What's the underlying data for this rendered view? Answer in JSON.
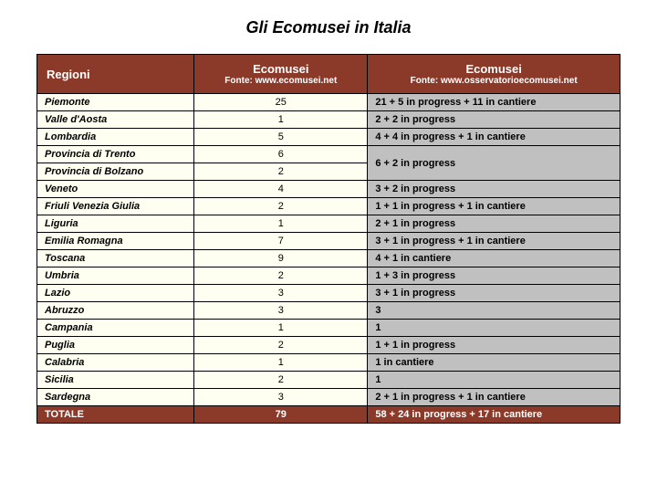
{
  "title": "Gli Ecomusei in Italia",
  "table": {
    "headers": {
      "regioni": "Regioni",
      "col2_main": "Ecomusei",
      "col2_sub": "Fonte: www.ecomusei.net",
      "col3_main": "Ecomusei",
      "col3_sub": "Fonte: www.osservatorioecomusei.net"
    },
    "rows": [
      {
        "region": "Piemonte",
        "count": "25",
        "detail": "21 + 5 in progress + 11 in cantiere"
      },
      {
        "region": "Valle d'Aosta",
        "count": "1",
        "detail": "2 + 2 in progress"
      },
      {
        "region": "Lombardia",
        "count": "5",
        "detail": "4 + 4 in progress + 1 in cantiere"
      },
      {
        "region": "Provincia di Trento",
        "count": "6",
        "detail": "6 + 2 in progress",
        "merge_below": true
      },
      {
        "region": "Provincia di Bolzano",
        "count": "2",
        "detail": null
      },
      {
        "region": "Veneto",
        "count": "4",
        "detail": "3 + 2 in progress"
      },
      {
        "region": "Friuli Venezia Giulia",
        "count": "2",
        "detail": "1 + 1 in progress + 1 in cantiere"
      },
      {
        "region": "Liguria",
        "count": "1",
        "detail": "2 + 1 in progress"
      },
      {
        "region": "Emilia Romagna",
        "count": "7",
        "detail": "3 + 1 in progress + 1 in cantiere"
      },
      {
        "region": "Toscana",
        "count": "9",
        "detail": "4 + 1 in cantiere"
      },
      {
        "region": "Umbria",
        "count": "2",
        "detail": "1 + 3 in progress"
      },
      {
        "region": "Lazio",
        "count": "3",
        "detail": "3 + 1 in progress"
      },
      {
        "region": "Abruzzo",
        "count": "3",
        "detail": "3"
      },
      {
        "region": "Campania",
        "count": "1",
        "detail": "1"
      },
      {
        "region": "Puglia",
        "count": "2",
        "detail": "1 + 1 in progress"
      },
      {
        "region": "Calabria",
        "count": "1",
        "detail": "1 in cantiere"
      },
      {
        "region": "Sicilia",
        "count": "2",
        "detail": "1"
      },
      {
        "region": "Sardegna",
        "count": "3",
        "detail": "2 + 1 in progress + 1 in  cantiere"
      }
    ],
    "total": {
      "label": "TOTALE",
      "count": "79",
      "detail": "58 +  24 in progress + 17 in cantiere"
    }
  },
  "colors": {
    "header_bg": "#8b3a2a",
    "header_fg": "#ffffff",
    "col_light_bg": "#fefff0",
    "col_detail_bg": "#c0c0c0",
    "border": "#000000"
  }
}
